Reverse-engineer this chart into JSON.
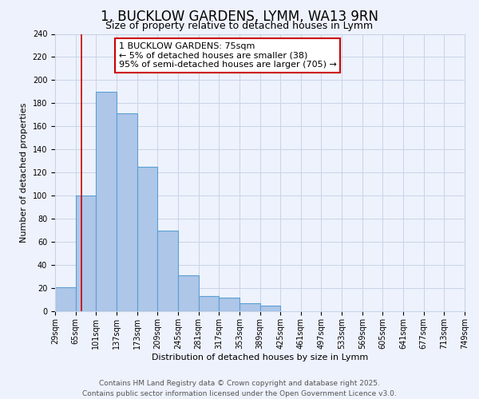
{
  "title": "1, BUCKLOW GARDENS, LYMM, WA13 9RN",
  "subtitle": "Size of property relative to detached houses in Lymm",
  "xlabel": "Distribution of detached houses by size in Lymm",
  "ylabel": "Number of detached properties",
  "bin_edges": [
    29,
    65,
    101,
    137,
    173,
    209,
    245,
    281,
    317,
    353,
    389,
    425,
    461,
    497,
    533,
    569,
    605,
    641,
    677,
    713,
    749
  ],
  "bar_heights": [
    21,
    100,
    190,
    171,
    125,
    70,
    31,
    13,
    12,
    7,
    5,
    0,
    0,
    0,
    0,
    0,
    0,
    0,
    0,
    0
  ],
  "bar_color": "#aec6e8",
  "bar_edge_color": "#5a9fd4",
  "red_line_x": 75,
  "annotation_title": "1 BUCKLOW GARDENS: 75sqm",
  "annotation_line1": "← 5% of detached houses are smaller (38)",
  "annotation_line2": "95% of semi-detached houses are larger (705) →",
  "annotation_box_color": "#ffffff",
  "annotation_box_edge": "#cc0000",
  "red_line_color": "#cc0000",
  "ylim": [
    0,
    240
  ],
  "yticks": [
    0,
    20,
    40,
    60,
    80,
    100,
    120,
    140,
    160,
    180,
    200,
    220,
    240
  ],
  "footer_line1": "Contains HM Land Registry data © Crown copyright and database right 2025.",
  "footer_line2": "Contains public sector information licensed under the Open Government Licence v3.0.",
  "background_color": "#eef2fc",
  "grid_color": "#c8d4e8",
  "title_fontsize": 12,
  "subtitle_fontsize": 9,
  "axis_label_fontsize": 8,
  "tick_label_fontsize": 7,
  "annotation_fontsize": 8,
  "footer_fontsize": 6.5
}
